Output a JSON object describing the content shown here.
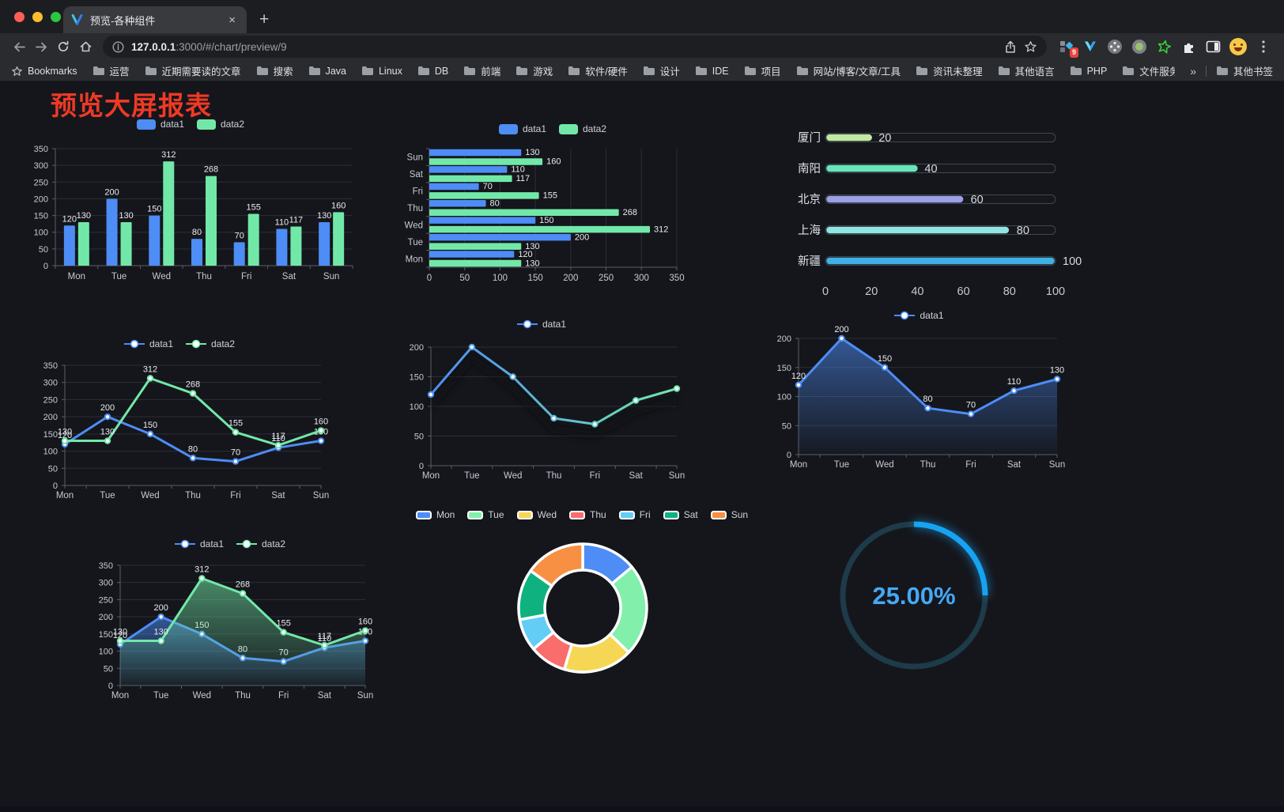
{
  "browser": {
    "tab_title": "预览-各种组件",
    "close_glyph": "×",
    "newtab_glyph": "+",
    "url_host": "127.0.0.1",
    "url_rest": ":3000/#/chart/preview/9",
    "extensions_badge": "9",
    "bookmarks_label": "Bookmarks",
    "bookmarks": [
      "运营",
      "近期需要读的文章",
      "搜索",
      "Java",
      "Linux",
      "DB",
      "前端",
      "游戏",
      "软件/硬件",
      "设计",
      "IDE",
      "项目",
      "网站/博客/文章/工具",
      "资讯未整理",
      "其他语言",
      "PHP",
      "文件服务器"
    ],
    "overflow_glyph": "»",
    "other_bookmarks": "其他书签"
  },
  "page": {
    "title": "预览大屏报表"
  },
  "chart_data": [
    {
      "type": "bar",
      "categories": [
        "Mon",
        "Tue",
        "Wed",
        "Thu",
        "Fri",
        "Sat",
        "Sun"
      ],
      "ylim": [
        0,
        350
      ],
      "ytick": 50,
      "value_labels": true,
      "legend_position": "top",
      "series": [
        {
          "name": "data1",
          "color": "#4d8df5",
          "values": [
            120,
            200,
            150,
            80,
            70,
            110,
            130
          ]
        },
        {
          "name": "data2",
          "color": "#72e8a8",
          "values": [
            130,
            130,
            312,
            268,
            155,
            117,
            160
          ]
        }
      ]
    },
    {
      "type": "bar-horizontal",
      "categories": [
        "Mon",
        "Tue",
        "Wed",
        "Thu",
        "Fri",
        "Sat",
        "Sun"
      ],
      "xlim": [
        0,
        350
      ],
      "xtick": 50,
      "value_labels": true,
      "legend_position": "top",
      "series": [
        {
          "name": "data1",
          "color": "#4d8df5",
          "values": [
            120,
            200,
            150,
            80,
            70,
            110,
            130
          ]
        },
        {
          "name": "data2",
          "color": "#72e8a8",
          "values": [
            130,
            130,
            312,
            268,
            155,
            117,
            160
          ]
        }
      ]
    },
    {
      "type": "progress",
      "max": 100,
      "ticks": [
        0,
        20,
        40,
        60,
        80,
        100
      ],
      "rows": [
        {
          "label": "厦门",
          "value": 20,
          "color": "#c0e9a2"
        },
        {
          "label": "南阳",
          "value": 40,
          "color": "#68e6bb"
        },
        {
          "label": "北京",
          "value": 60,
          "color": "#9aa0e5"
        },
        {
          "label": "上海",
          "value": 80,
          "color": "#8fe5e2"
        },
        {
          "label": "新疆",
          "value": 100,
          "color": "#3fb1e3"
        }
      ]
    },
    {
      "type": "line",
      "categories": [
        "Mon",
        "Tue",
        "Wed",
        "Thu",
        "Fri",
        "Sat",
        "Sun"
      ],
      "ylim": [
        0,
        350
      ],
      "ytick": 50,
      "value_labels": true,
      "markers": true,
      "series": [
        {
          "name": "data1",
          "color": "#4d8df5",
          "values": [
            120,
            200,
            150,
            80,
            70,
            110,
            130
          ]
        },
        {
          "name": "data2",
          "color": "#72e8a8",
          "values": [
            130,
            130,
            312,
            268,
            155,
            117,
            160
          ]
        }
      ]
    },
    {
      "type": "line",
      "categories": [
        "Mon",
        "Tue",
        "Wed",
        "Thu",
        "Fri",
        "Sat",
        "Sun"
      ],
      "ylim": [
        0,
        200
      ],
      "ytick": 50,
      "value_labels": false,
      "markers": true,
      "shadow": true,
      "series": [
        {
          "name": "data1",
          "color": "#4d8df5",
          "gradient": [
            "#4d8df5",
            "#72e8a8"
          ],
          "values": [
            120,
            200,
            150,
            80,
            70,
            110,
            130
          ]
        }
      ]
    },
    {
      "type": "line",
      "categories": [
        "Mon",
        "Tue",
        "Wed",
        "Thu",
        "Fri",
        "Sat",
        "Sun"
      ],
      "ylim": [
        0,
        200
      ],
      "ytick": 50,
      "value_labels": true,
      "markers": true,
      "series": [
        {
          "name": "data1",
          "color": "#4d8df5",
          "area": true,
          "values": [
            120,
            200,
            150,
            80,
            70,
            110,
            130
          ]
        }
      ]
    },
    {
      "type": "line",
      "categories": [
        "Mon",
        "Tue",
        "Wed",
        "Thu",
        "Fri",
        "Sat",
        "Sun"
      ],
      "ylim": [
        0,
        350
      ],
      "ytick": 50,
      "value_labels": true,
      "markers": true,
      "series": [
        {
          "name": "data1",
          "color": "#4d8df5",
          "area": true,
          "values": [
            120,
            200,
            150,
            80,
            70,
            110,
            130
          ]
        },
        {
          "name": "data2",
          "color": "#72e8a8",
          "area": true,
          "values": [
            130,
            130,
            312,
            268,
            155,
            117,
            160
          ]
        }
      ]
    },
    {
      "type": "donut",
      "items": [
        {
          "label": "Mon",
          "value": 120,
          "color": "#4e8df5"
        },
        {
          "label": "Tue",
          "value": 200,
          "color": "#82f0ab"
        },
        {
          "label": "Wed",
          "value": 150,
          "color": "#f6d755"
        },
        {
          "label": "Thu",
          "value": 80,
          "color": "#fa6d6d"
        },
        {
          "label": "Fri",
          "value": 70,
          "color": "#63cdf6"
        },
        {
          "label": "Sat",
          "value": 110,
          "color": "#0fb27e"
        },
        {
          "label": "Sun",
          "value": 130,
          "color": "#f79042"
        }
      ]
    },
    {
      "type": "gauge",
      "percent": 25,
      "label": "25.00%",
      "color": "#16a3f2",
      "track": "#1d3b49",
      "text_color": "#45a9f5"
    }
  ]
}
